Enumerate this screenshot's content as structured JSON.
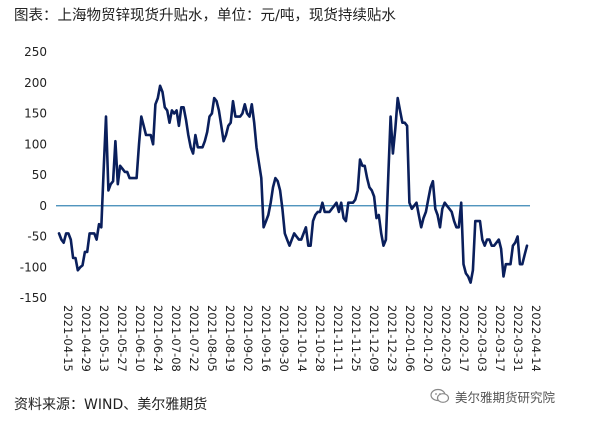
{
  "title": "图表：上海物贸锌现货升贴水，单位：元/吨，现货持续贴水",
  "source": "资料来源：WIND、美尔雅期货",
  "watermark": "美尔雅期货研究院",
  "colors": {
    "line": "#0a1f5c",
    "zero_line": "#3a86b4",
    "text": "#222222"
  },
  "chart_data": {
    "type": "line",
    "ylim": [
      -150,
      250
    ],
    "yticks": [
      -150,
      -100,
      -50,
      0,
      50,
      100,
      150,
      200,
      250
    ],
    "x_tick_labels": [
      "2021-04-15",
      "2021-04-29",
      "2021-05-13",
      "2021-05-27",
      "2021-06-10",
      "2021-06-24",
      "2021-07-08",
      "2021-07-22",
      "2021-08-05",
      "2021-08-19",
      "2021-09-02",
      "2021-09-16",
      "2021-09-30",
      "2021-10-14",
      "2021-10-28",
      "2021-11-11",
      "2021-11-25",
      "2021-12-09",
      "2021-12-23",
      "2022-01-06",
      "2022-01-20",
      "2022-02-03",
      "2022-02-17",
      "2022-03-03",
      "2022-03-17",
      "2022-03-31",
      "2022-04-14"
    ],
    "series": [
      {
        "values": [
          -45,
          -55,
          -60,
          -45,
          -45,
          -55,
          -85,
          -85,
          -105,
          -100,
          -97,
          -75,
          -75,
          -45,
          -45,
          -45,
          -55,
          -30,
          -35,
          60,
          145,
          25,
          35,
          40,
          105,
          35,
          65,
          60,
          55,
          55,
          45,
          45,
          45,
          45,
          100,
          145,
          130,
          115,
          115,
          115,
          100,
          165,
          175,
          195,
          185,
          160,
          155,
          135,
          155,
          150,
          155,
          130,
          160,
          160,
          140,
          115,
          95,
          85,
          115,
          95,
          95,
          95,
          105,
          120,
          145,
          150,
          175,
          170,
          155,
          130,
          105,
          115,
          130,
          135,
          170,
          145,
          145,
          145,
          150,
          165,
          150,
          145,
          165,
          135,
          95,
          70,
          45,
          -35,
          -25,
          -15,
          5,
          30,
          45,
          40,
          25,
          -5,
          -45,
          -55,
          -65,
          -55,
          -45,
          -50,
          -55,
          -55,
          -45,
          -35,
          -65,
          -65,
          -25,
          -15,
          -10,
          -10,
          5,
          -10,
          -10,
          -10,
          -5,
          0,
          5,
          -10,
          5,
          -20,
          -25,
          5,
          5,
          5,
          10,
          25,
          75,
          65,
          65,
          45,
          30,
          25,
          15,
          -20,
          -15,
          -45,
          -65,
          -55,
          45,
          145,
          85,
          125,
          175,
          155,
          135,
          135,
          130,
          5,
          -5,
          0,
          5,
          -15,
          -35,
          -20,
          -10,
          10,
          30,
          40,
          -5,
          -15,
          -35,
          -5,
          5,
          0,
          -5,
          -10,
          -25,
          -35,
          -35,
          5,
          -95,
          -110,
          -115,
          -125,
          -105,
          -25,
          -25,
          -25,
          -55,
          -65,
          -55,
          -55,
          -65,
          -65,
          -60,
          -55,
          -70,
          -115,
          -95,
          -95,
          -95,
          -65,
          -60,
          -50,
          -95,
          -95,
          -80,
          -65
        ]
      }
    ]
  }
}
